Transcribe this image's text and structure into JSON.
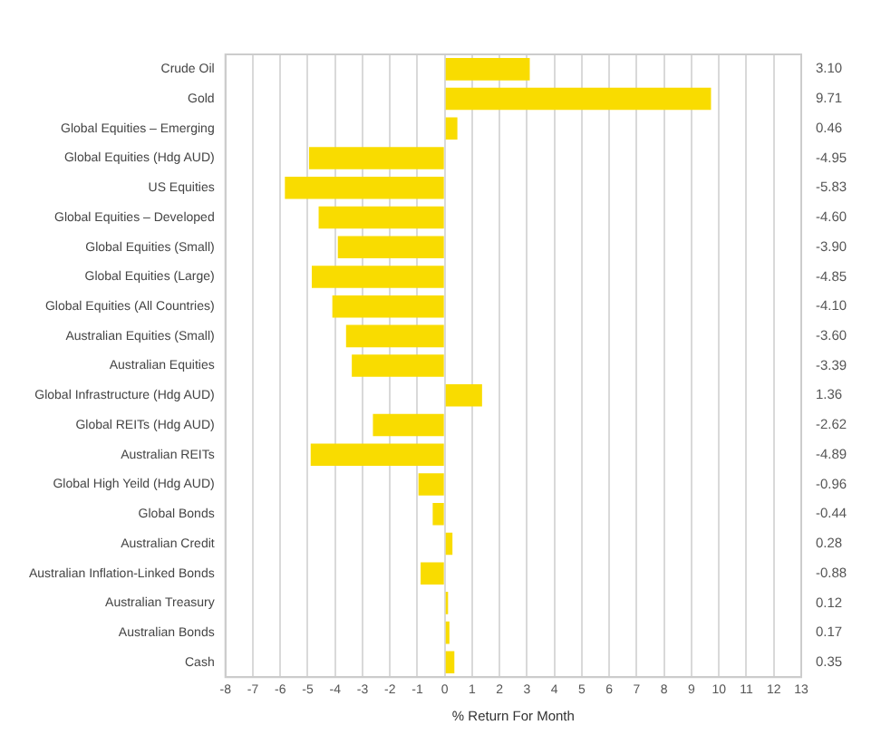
{
  "chart_data": {
    "type": "bar",
    "orientation": "horizontal",
    "xlabel": "% Return For Month",
    "categories": [
      "Crude Oil",
      "Gold",
      "Global Equities – Emerging",
      "Global Equities (Hdg AUD)",
      "US Equities",
      "Global Equities – Developed",
      "Global Equities (Small)",
      "Global Equities (Large)",
      "Global Equities (All Countries)",
      "Australian Equities (Small)",
      "Australian Equities",
      "Global Infrastructure (Hdg AUD)",
      "Global REITs (Hdg AUD)",
      "Australian REITs",
      "Global High Yeild (Hdg AUD)",
      "Global Bonds",
      "Australian Credit",
      "Australian Inflation-Linked Bonds",
      "Australian Treasury",
      "Australian Bonds",
      "Cash"
    ],
    "values": [
      3.1,
      9.71,
      0.46,
      -4.95,
      -5.83,
      -4.6,
      -3.9,
      -4.85,
      -4.1,
      -3.6,
      -3.39,
      1.36,
      -2.62,
      -4.89,
      -0.96,
      -0.44,
      0.28,
      -0.88,
      0.12,
      0.17,
      0.35
    ],
    "value_labels": [
      "3.10",
      "9.71",
      "0.46",
      "-4.95",
      "-5.83",
      "-4.60",
      "-3.90",
      "-4.85",
      "-4.10",
      "-3.60",
      "-3.39",
      "1.36",
      "-2.62",
      "-4.89",
      "-0.96",
      "-0.44",
      "0.28",
      "-0.88",
      "0.12",
      "0.17",
      "0.35"
    ],
    "color": "#f9dc00",
    "xlim": [
      -8,
      13
    ],
    "xticks": [
      -8,
      -7,
      -6,
      -5,
      -4,
      -3,
      -2,
      -1,
      0,
      1,
      2,
      3,
      4,
      5,
      6,
      7,
      8,
      9,
      10,
      11,
      12,
      13
    ],
    "grid": "x",
    "legend": false
  }
}
